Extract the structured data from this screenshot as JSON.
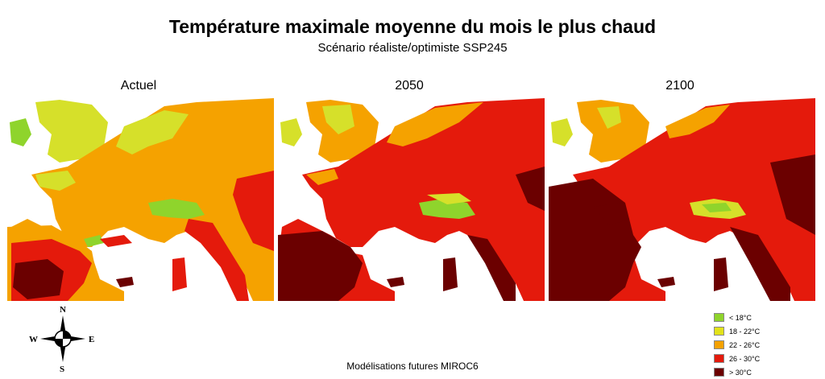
{
  "title": "Température maximale moyenne du mois le plus chaud",
  "subtitle": "Scénario réaliste/optimiste SSP245",
  "panels": [
    {
      "label": "Actuel"
    },
    {
      "label": "2050"
    },
    {
      "label": "2100"
    }
  ],
  "compass": {
    "n": "N",
    "s": "S",
    "e": "E",
    "w": "W"
  },
  "legend": [
    {
      "label": "< 18°C",
      "color": "#8fd42c"
    },
    {
      "label": "18 - 22°C",
      "color": "#e2e21a"
    },
    {
      "label": "22 - 26°C",
      "color": "#f5a200"
    },
    {
      "label": "26 - 30°C",
      "color": "#e41a0c"
    },
    {
      "label": "> 30°C",
      "color": "#6b0000"
    }
  ],
  "footer": "Modélisations futures MIROC6"
}
